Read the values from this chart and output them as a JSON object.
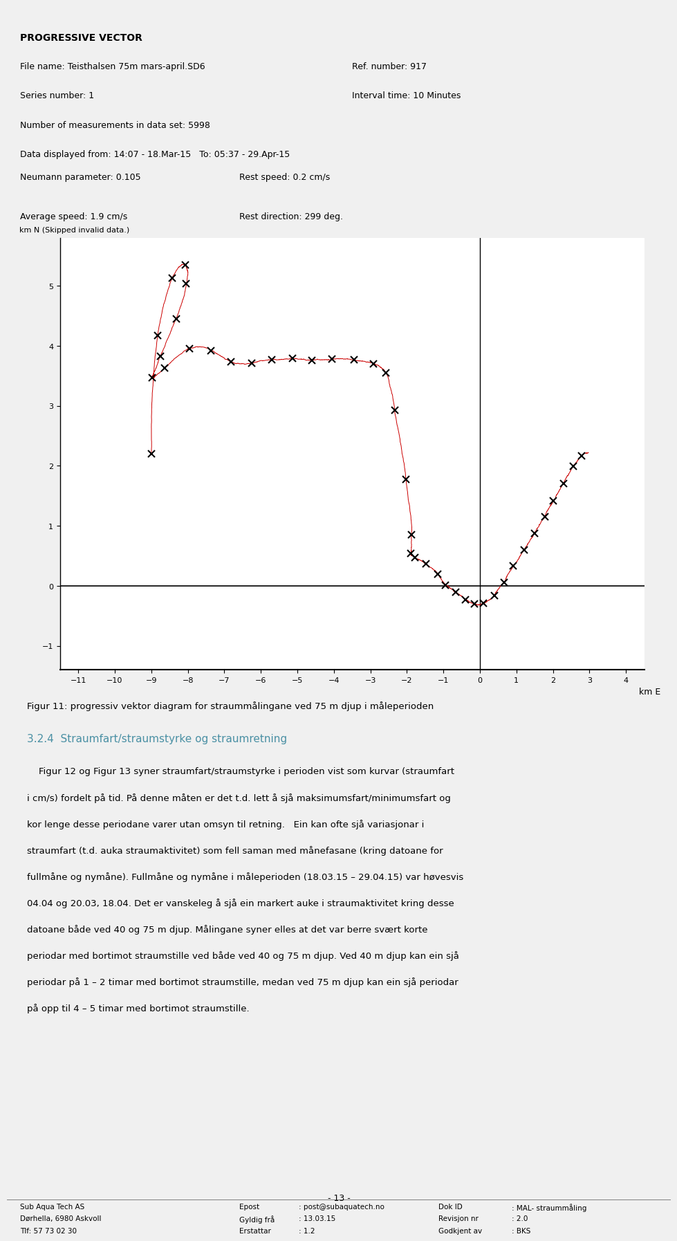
{
  "bg_color": "#e8e8e8",
  "white": "#ffffff",
  "page_bg": "#f0f0f0",
  "header_title": "PROGRESSIVE VECTOR",
  "header_line1": "File name: Teisthalsen 75m mars-april.SD6",
  "header_line1b": "Ref. number: 917",
  "header_line2": "Series number: 1",
  "header_line2b": "Interval time: 10 Minutes",
  "header_line3": "Number of measurements in data set: 5998",
  "header_line4": "Data displayed from: 14:07 - 18.Mar-15   To: 05:37 - 29.Apr-15",
  "param_line1": "Neumann parameter: 0.105",
  "param_line1b": "Rest speed: 0.2 cm/s",
  "param_line2": "Average speed: 1.9 cm/s",
  "param_line2b": "Rest direction: 299 deg.",
  "ylabel": "km N (Skipped invalid data.)",
  "xlabel": "km E",
  "xlim": [
    -11.5,
    4.5
  ],
  "ylim": [
    -1.4,
    5.8
  ],
  "xticks": [
    -11,
    -10,
    -9,
    -8,
    -7,
    -6,
    -5,
    -4,
    -3,
    -2,
    -1,
    0,
    1,
    2,
    3,
    4
  ],
  "yticks": [
    -1,
    0,
    1,
    2,
    3,
    4,
    5
  ],
  "fig_caption": "FIGUR 11: PROGRESSIV VEKTOR DIAGRAM FOR STRAUMMÅLINGANE VED 75 M DJUP I MÅLEPERIODEN",
  "fig_caption_bold_word": "75",
  "section_title": "3.2.4  Straumfart/straumstyrke og straumretning",
  "section_color": "#4a90a4",
  "body_text": "    Figur 12 og Figur 13 syner straumfart/straumstyrke i perioden vist som kurvar (straumfart i cm/s) fordelt på tid. På denne måten er det t.d. lett å sjå maksimumsfart/minimumsfart og kor lenge desse periodane varer utan omsyn til retning.  Ein kan ofte sjå variasjonar i straumfart (t.d. auka straumaktivitet) som fell saman med månefasane (kring datoane for fullmåne og nymåne). Fullmåne og nymåne i måleperioden (18.03.15 – 29.04.15) var høvesvis 04.04 og 20.03, 18.04. Det er vanskeleg å sjå ein markert auke i straumaktivitet kring desse datoane både ved 40 og 75 m djup. Målingane syner elles at det var berre svært korte periodar med bortimot straumstille ved både ved 40 og 75 m djup. Ved 40 m djup kan ein sjå periodar på 1 – 2 timar med bortimot straumstille, medan ved 75 m djup kan ein sjå periodar på opp til 4 – 5 timar med bortimot straumstille.",
  "footer_left1": "Sub Aqua Tech AS",
  "footer_left2": "Dørhella, 6980 Askvoll",
  "footer_left3": "Tlf: 57 73 02 30",
  "footer_mid1": "Epost",
  "footer_mid2": "Gyldig frå",
  "footer_mid3": "Erstattar",
  "footer_mid1v": ": post@subaquatech.no",
  "footer_mid2v": ": 13.03.15",
  "footer_mid3v": ": 1.2",
  "footer_right1": "Dok ID",
  "footer_right2": "Revisjon nr",
  "footer_right3": "Godkjent av",
  "footer_right1v": ": MAL- straummåling",
  "footer_right2v": ": 2.0",
  "footer_right3v": ": BKS",
  "footer_page": "- 13 -"
}
